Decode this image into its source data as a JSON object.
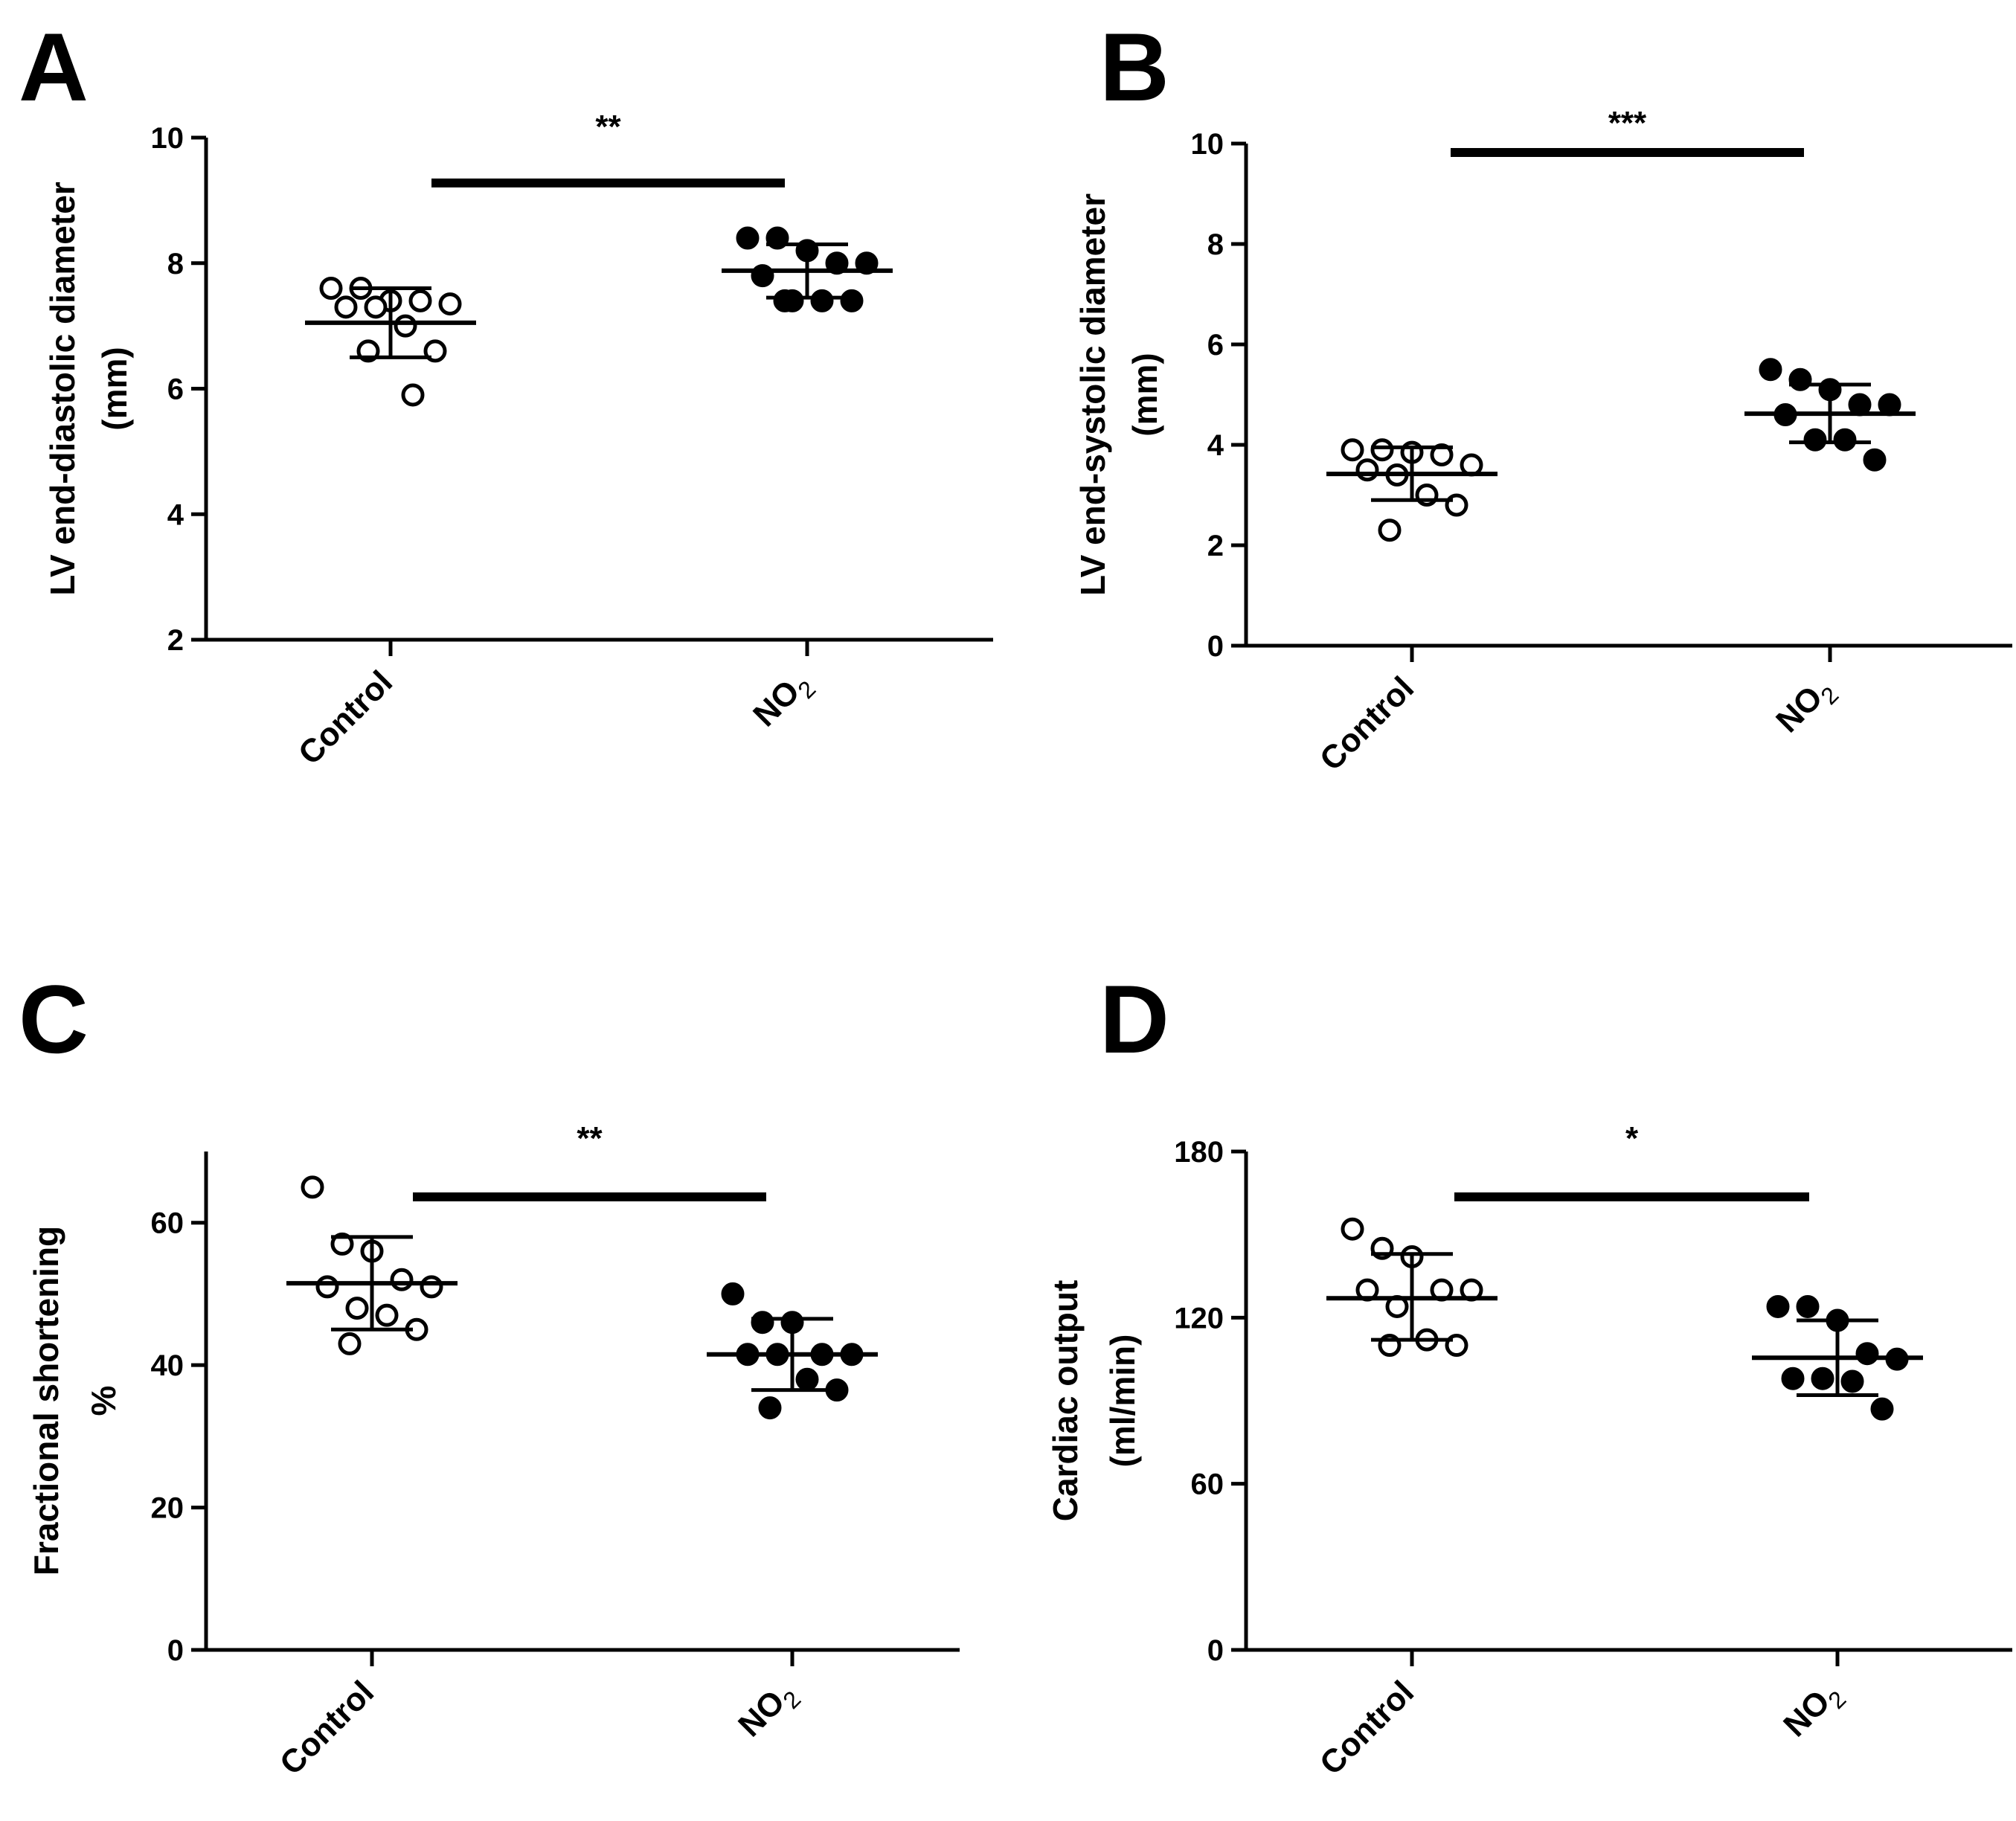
{
  "colors": {
    "ink": "#000000",
    "background": "#ffffff",
    "control_marker_fill": "#ffffff",
    "no2_marker_fill": "#000000"
  },
  "chart_data": [
    {
      "panel": "A",
      "type": "scatter",
      "ylabel": "LV end-diastolic diameter",
      "yunit": "(mm)",
      "ylim": [
        2,
        10
      ],
      "yticks": [
        2,
        4,
        6,
        8,
        10
      ],
      "categories": [
        "Control",
        "NO2"
      ],
      "category_display": [
        {
          "main": "Control",
          "sub": ""
        },
        {
          "main": "NO",
          "sub": "2"
        }
      ],
      "series": [
        {
          "name": "Control",
          "marker": "open-circle",
          "mean": 7.05,
          "sd_low": 6.5,
          "sd_high": 7.6,
          "points": [
            7.6,
            7.6,
            7.4,
            7.4,
            7.35,
            7.3,
            7.3,
            7.0,
            6.6,
            6.6,
            5.9
          ]
        },
        {
          "name": "NO2",
          "marker": "filled-circle",
          "mean": 7.88,
          "sd_low": 7.45,
          "sd_high": 8.3,
          "points": [
            8.4,
            8.4,
            8.2,
            8.0,
            8.0,
            7.8,
            7.4,
            7.4,
            7.4,
            7.4
          ]
        }
      ],
      "significance": {
        "label": "**",
        "between": [
          "Control",
          "NO2"
        ]
      }
    },
    {
      "panel": "B",
      "type": "scatter",
      "ylabel": "LV end-systolic diameter",
      "yunit": "(mm)",
      "ylim": [
        0,
        10
      ],
      "yticks": [
        0,
        2,
        4,
        6,
        8,
        10
      ],
      "categories": [
        "Control",
        "NO2"
      ],
      "category_display": [
        {
          "main": "Control",
          "sub": ""
        },
        {
          "main": "NO",
          "sub": "2"
        }
      ],
      "series": [
        {
          "name": "Control",
          "marker": "open-circle",
          "mean": 3.42,
          "sd_low": 2.9,
          "sd_high": 3.95,
          "points": [
            3.9,
            3.9,
            3.85,
            3.8,
            3.6,
            3.5,
            3.4,
            3.0,
            2.8,
            2.3
          ]
        },
        {
          "name": "NO2",
          "marker": "filled-circle",
          "mean": 4.62,
          "sd_low": 4.05,
          "sd_high": 5.2,
          "points": [
            5.5,
            5.3,
            5.1,
            4.8,
            4.8,
            4.6,
            4.1,
            4.1,
            3.7
          ]
        }
      ],
      "significance": {
        "label": "***",
        "between": [
          "Control",
          "NO2"
        ]
      }
    },
    {
      "panel": "C",
      "type": "scatter",
      "ylabel": "Fractional shortening",
      "yunit": "%",
      "ylim": [
        0,
        70
      ],
      "yticks": [
        0,
        20,
        40,
        60
      ],
      "categories": [
        "Control",
        "NO2"
      ],
      "category_display": [
        {
          "main": "Control",
          "sub": ""
        },
        {
          "main": "NO",
          "sub": "2"
        }
      ],
      "series": [
        {
          "name": "Control",
          "marker": "open-circle",
          "mean": 51.5,
          "sd_low": 45,
          "sd_high": 58,
          "points": [
            65,
            57,
            56,
            52,
            51,
            51,
            48,
            47,
            45,
            43
          ]
        },
        {
          "name": "NO2",
          "marker": "filled-circle",
          "mean": 41.5,
          "sd_low": 36.5,
          "sd_high": 46.5,
          "points": [
            50,
            46,
            46,
            41.5,
            41.5,
            41.5,
            41.5,
            38,
            36.5,
            34
          ]
        }
      ],
      "significance": {
        "label": "**",
        "between": [
          "Control",
          "NO2"
        ]
      }
    },
    {
      "panel": "D",
      "type": "scatter",
      "ylabel": "Cardiac output",
      "yunit": "(ml/min)",
      "ylim": [
        0,
        180
      ],
      "yticks": [
        0,
        60,
        120,
        180
      ],
      "categories": [
        "Control",
        "NO2"
      ],
      "category_display": [
        {
          "main": "Control",
          "sub": ""
        },
        {
          "main": "NO",
          "sub": "2"
        }
      ],
      "series": [
        {
          "name": "Control",
          "marker": "open-circle",
          "mean": 127,
          "sd_low": 112,
          "sd_high": 143,
          "points": [
            152,
            145,
            142,
            130,
            130,
            130,
            124,
            112,
            110,
            110
          ]
        },
        {
          "name": "NO2",
          "marker": "filled-circle",
          "mean": 105.5,
          "sd_low": 92,
          "sd_high": 119,
          "points": [
            124,
            124,
            119,
            107,
            105,
            98,
            98,
            97,
            87
          ]
        }
      ],
      "significance": {
        "label": "*",
        "between": [
          "Control",
          "NO2"
        ]
      }
    }
  ]
}
